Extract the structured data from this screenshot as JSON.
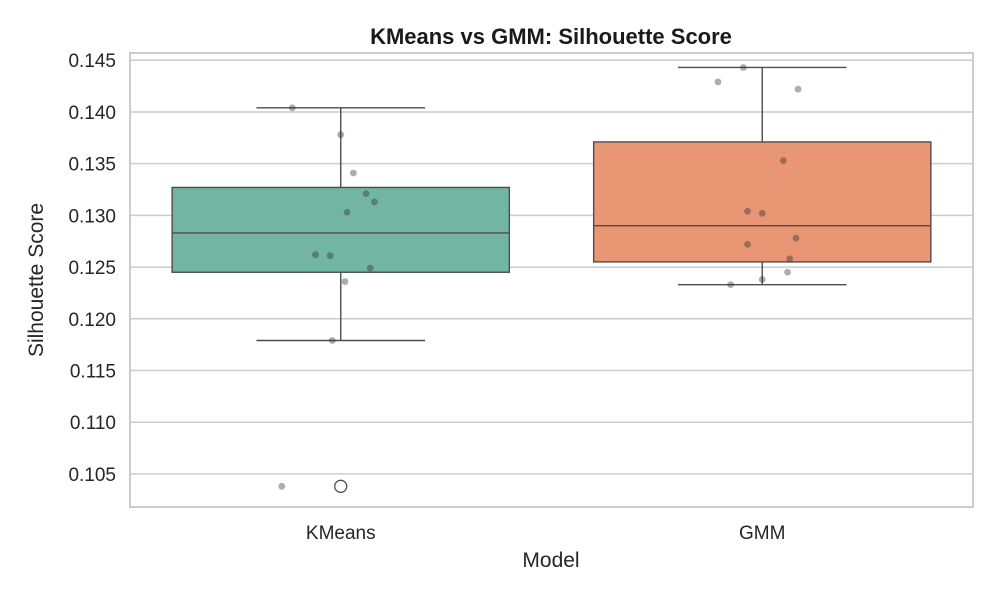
{
  "chart_data": {
    "type": "box",
    "title": "KMeans vs GMM: Silhouette Score",
    "xlabel": "Model",
    "ylabel": "Silhouette Score",
    "categories": [
      "KMeans",
      "GMM"
    ],
    "ylim": [
      0.1018,
      0.1457
    ],
    "yticks": [
      0.105,
      0.11,
      0.115,
      0.12,
      0.125,
      0.13,
      0.135,
      0.14,
      0.145
    ],
    "ytick_labels": [
      "0.105",
      "0.110",
      "0.115",
      "0.120",
      "0.125",
      "0.130",
      "0.135",
      "0.140",
      "0.145"
    ],
    "grid": true,
    "series": [
      {
        "category": "KMeans",
        "color": "#72b6a1",
        "q1": 0.1245,
        "median": 0.1283,
        "q3": 0.1327,
        "whisker_low": 0.1179,
        "whisker_high": 0.1404,
        "outliers": [
          0.1038
        ],
        "points": [
          0.1404,
          0.1378,
          0.1341,
          0.1321,
          0.1313,
          0.1303,
          0.1262,
          0.1261,
          0.1249,
          0.1236,
          0.1179,
          0.1038
        ]
      },
      {
        "category": "GMM",
        "color": "#e99675",
        "q1": 0.1255,
        "median": 0.129,
        "q3": 0.1371,
        "whisker_low": 0.1233,
        "whisker_high": 0.1443,
        "outliers": [],
        "points": [
          0.1443,
          0.1429,
          0.1422,
          0.1353,
          0.1304,
          0.1302,
          0.1278,
          0.1272,
          0.1258,
          0.1245,
          0.1238,
          0.1233
        ]
      }
    ]
  }
}
